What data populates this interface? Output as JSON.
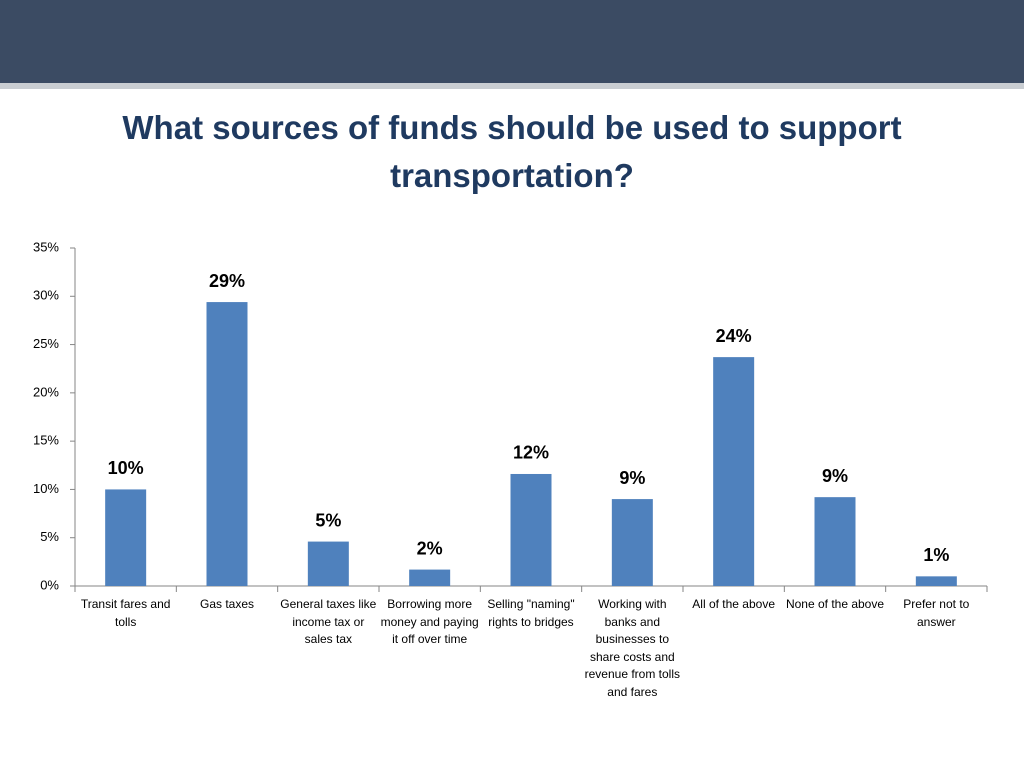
{
  "chart_data": {
    "type": "bar",
    "title": "What sources of funds should be used to support transportation?",
    "categories": [
      "Transit fares and tolls",
      "Gas taxes",
      "General taxes like income tax or sales tax",
      "Borrowing more money and paying it off over time",
      "Selling \"naming\" rights to bridges",
      "Working with banks and businesses to share costs and revenue from tolls and fares",
      "All of the above",
      "None of the above",
      "Prefer not to answer"
    ],
    "values": [
      10,
      29.4,
      4.6,
      1.7,
      11.6,
      9.0,
      23.7,
      9.2,
      1.0
    ],
    "value_labels": [
      "10%",
      "29%",
      "5%",
      "2%",
      "12%",
      "9%",
      "24%",
      "9%",
      "1%"
    ],
    "color": "#4f81bd",
    "ylim": [
      0,
      35
    ],
    "yticks": [
      {
        "value": 0,
        "label": "0%"
      },
      {
        "value": 5,
        "label": "5%"
      },
      {
        "value": 10,
        "label": "10%"
      },
      {
        "value": 15,
        "label": "15%"
      },
      {
        "value": 20,
        "label": "20%"
      },
      {
        "value": 25,
        "label": "25%"
      },
      {
        "value": 30,
        "label": "30%"
      },
      {
        "value": 35,
        "label": "35%"
      }
    ],
    "grid": false
  }
}
